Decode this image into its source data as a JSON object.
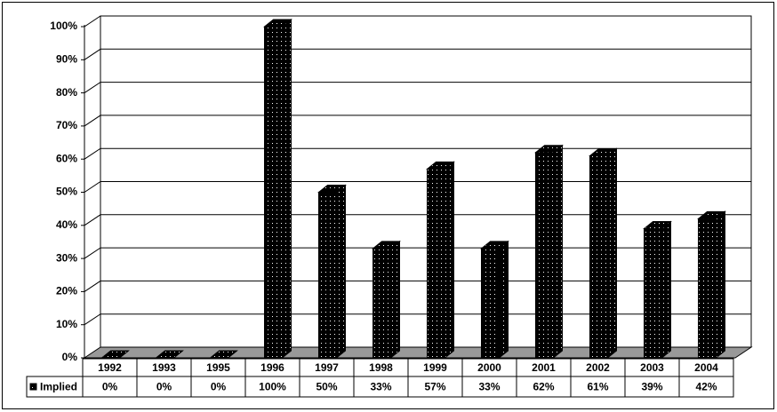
{
  "chart_data": {
    "type": "bar3d",
    "categories": [
      "1992",
      "1993",
      "1995",
      "1996",
      "1997",
      "1998",
      "1999",
      "2000",
      "2001",
      "2002",
      "2003",
      "2004"
    ],
    "series": [
      {
        "name": "Implied",
        "color": "#000000",
        "values": [
          0,
          0,
          0,
          100,
          50,
          33,
          57,
          33,
          62,
          61,
          39,
          42
        ],
        "value_labels": [
          "0%",
          "0%",
          "0%",
          "100%",
          "50%",
          "33%",
          "57%",
          "33%",
          "62%",
          "61%",
          "39%",
          "42%"
        ]
      }
    ],
    "ylim": [
      0,
      100
    ],
    "yticks": [
      {
        "value": 0,
        "label": "0%"
      },
      {
        "value": 10,
        "label": "10%"
      },
      {
        "value": 20,
        "label": "20%"
      },
      {
        "value": 30,
        "label": "30%"
      },
      {
        "value": 40,
        "label": "40%"
      },
      {
        "value": 50,
        "label": "50%"
      },
      {
        "value": 60,
        "label": "60%"
      },
      {
        "value": 70,
        "label": "70%"
      },
      {
        "value": 80,
        "label": "80%"
      },
      {
        "value": 90,
        "label": "90%"
      },
      {
        "value": 100,
        "label": "100%"
      }
    ],
    "grid": true
  }
}
